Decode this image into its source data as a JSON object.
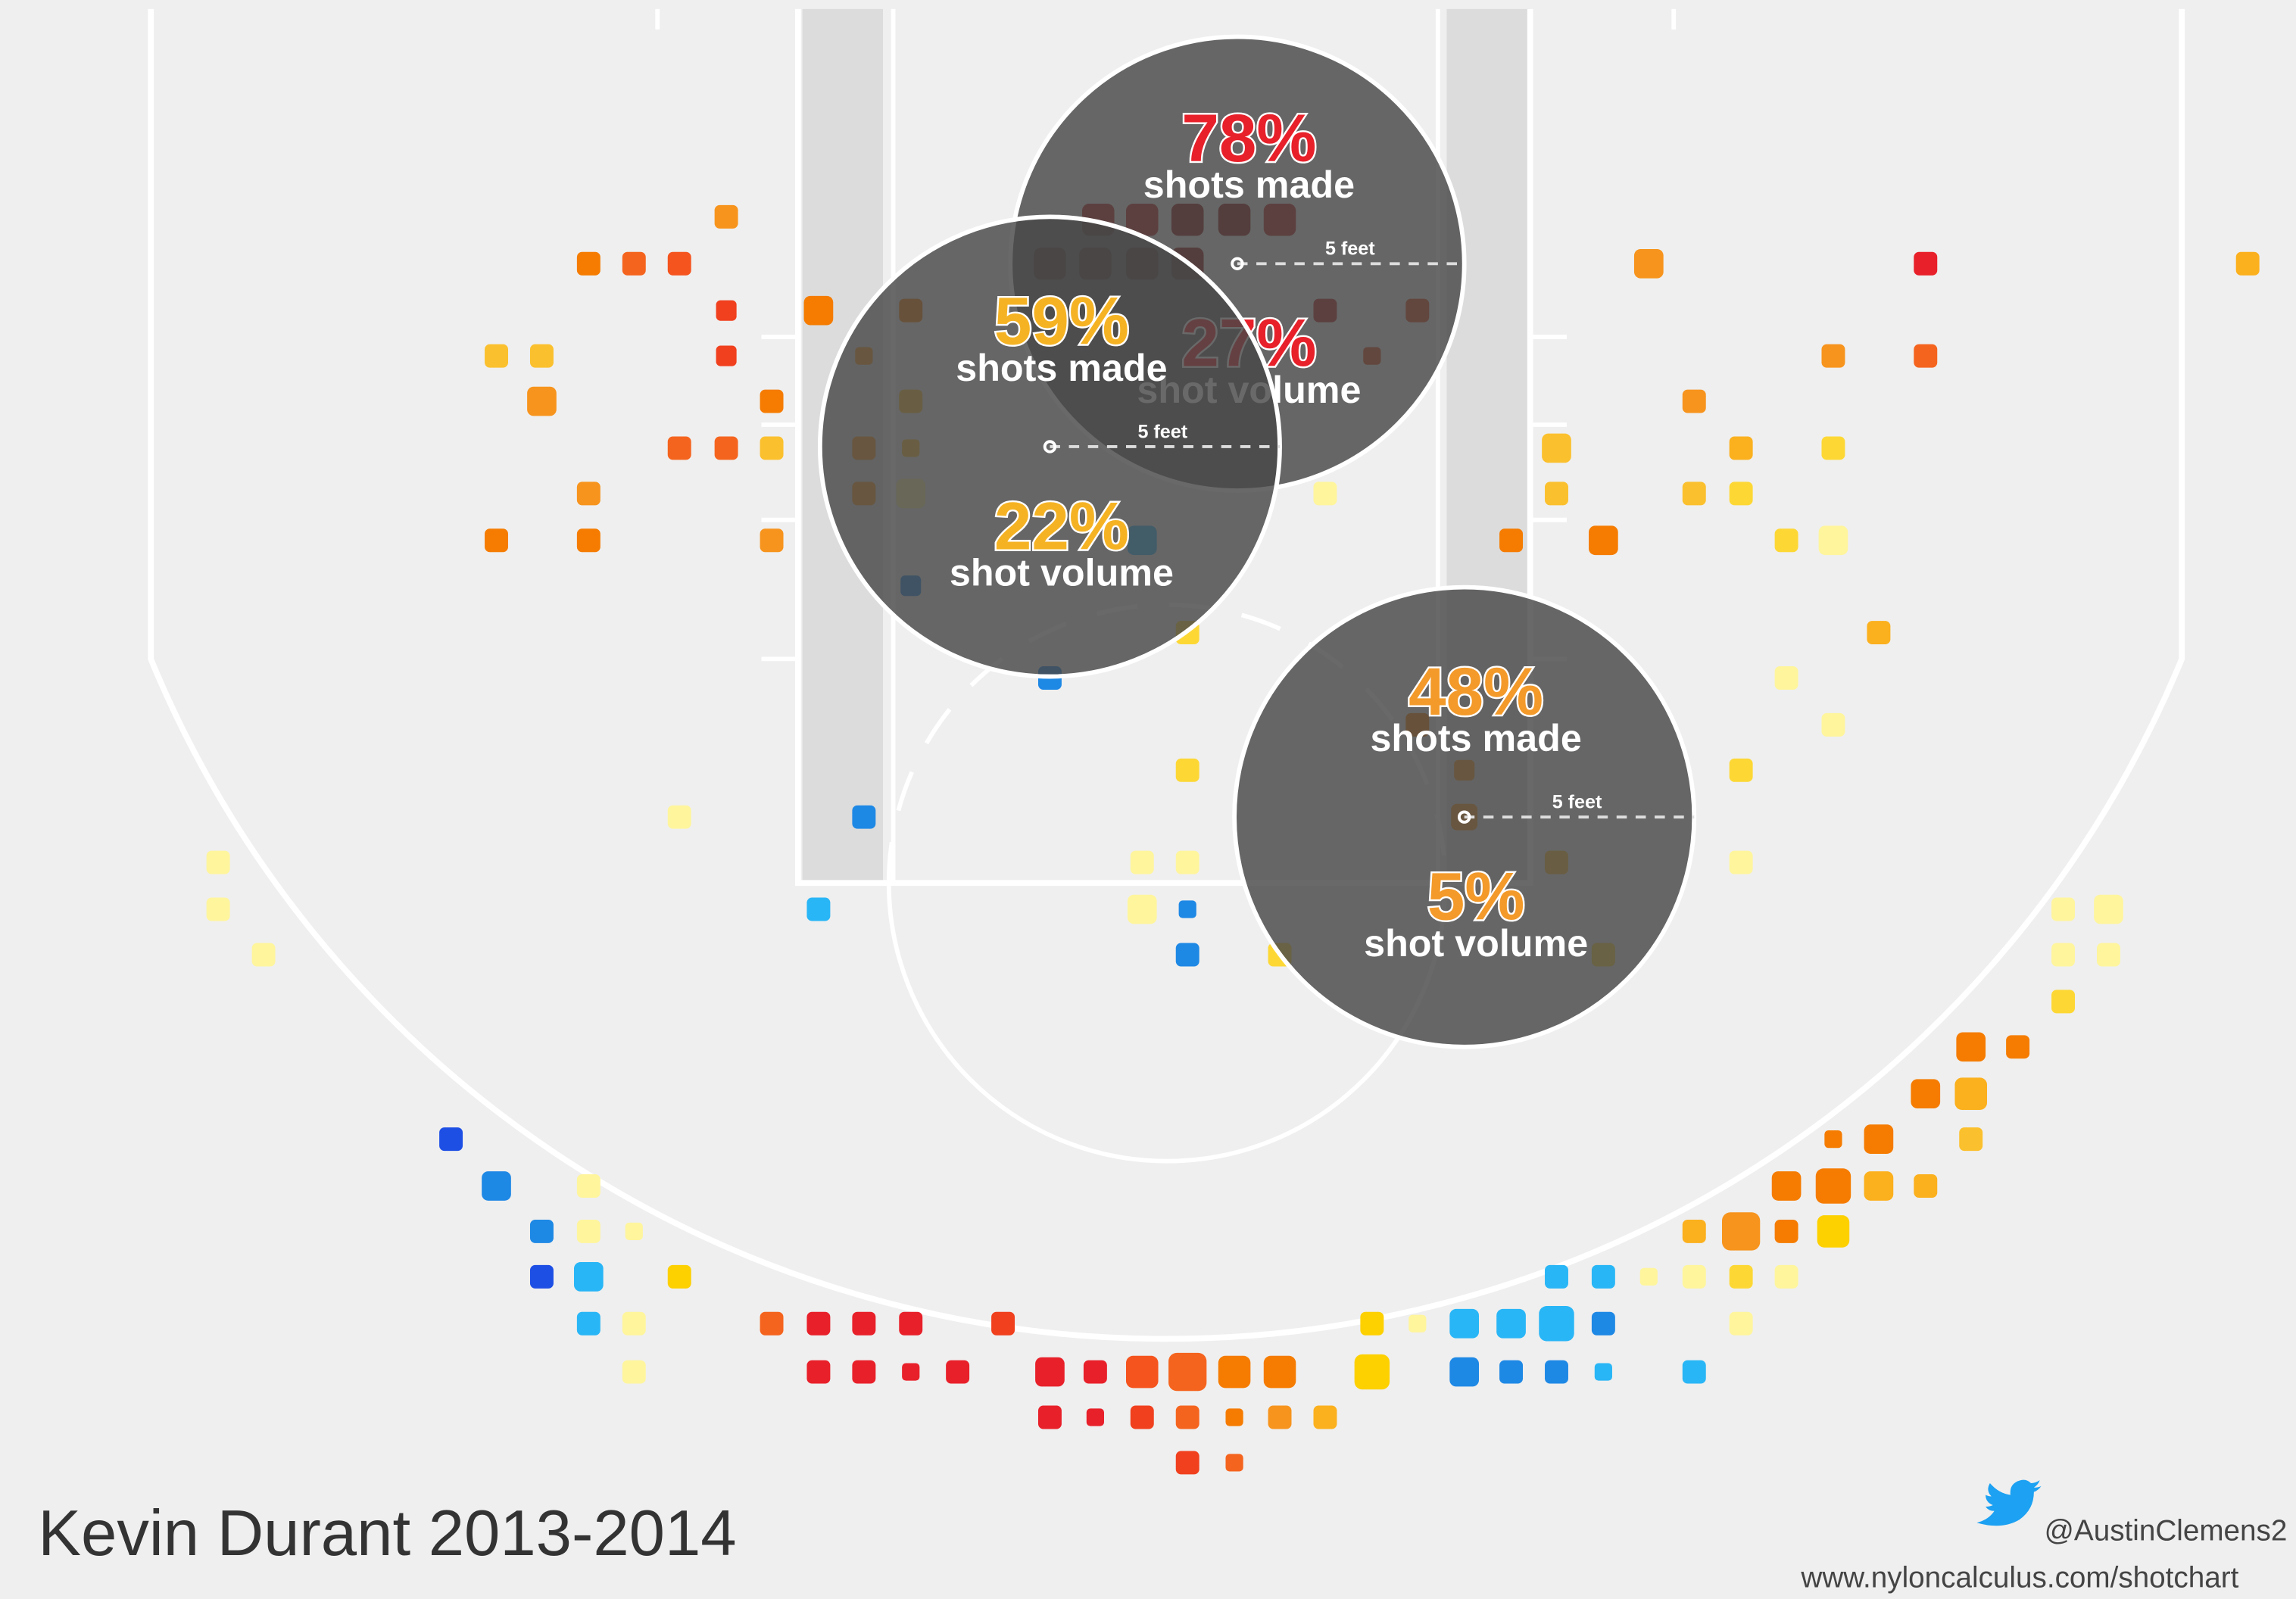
{
  "title": "Kevin Durant 2013-2014",
  "credit": {
    "handle": "@AustinClemens2",
    "url": "www.nyloncalculus.com/shotchart"
  },
  "zones": [
    {
      "made": "78%",
      "made_caption": "shots made",
      "volume": "27%",
      "volume_caption": "shot volume",
      "scale": "5 feet",
      "color": "#e8202a"
    },
    {
      "made": "59%",
      "made_caption": "shots made",
      "volume": "22%",
      "volume_caption": "shot volume",
      "scale": "5 feet",
      "color": "#f5b324"
    },
    {
      "made": "48%",
      "made_caption": "shots made",
      "volume": "5%",
      "volume_caption": "shot volume",
      "scale": "5 feet",
      "color": "#f39a2a"
    }
  ]
}
